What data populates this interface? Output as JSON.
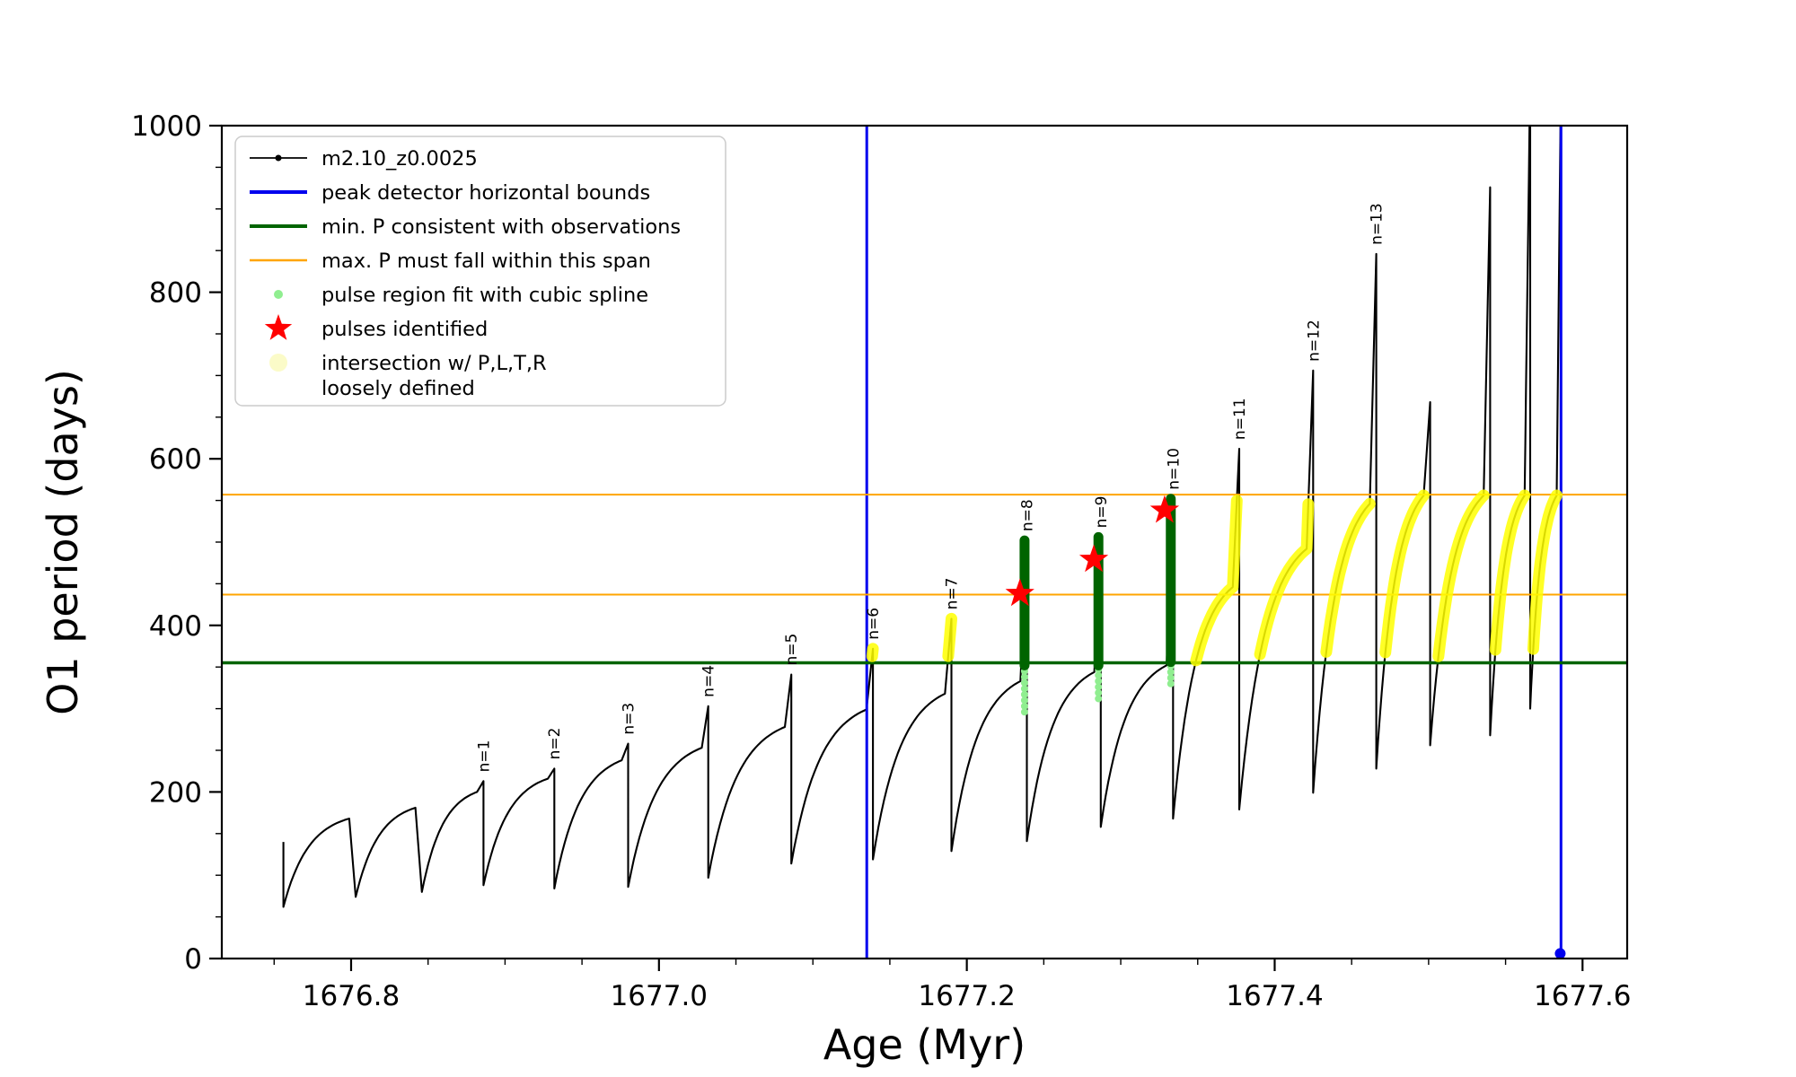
{
  "figure": {
    "background": "#ffffff"
  },
  "chart_data": {
    "type": "line",
    "title": "",
    "xlabel": "Age (Myr)",
    "ylabel": "O1 period (days)",
    "xlim": [
      1676.716,
      1677.629
    ],
    "ylim": [
      0,
      1000
    ],
    "xticks": {
      "values": [
        1676.8,
        1677.0,
        1677.2,
        1677.4,
        1677.6
      ],
      "labels": [
        "1676.8",
        "1677.0",
        "1677.2",
        "1677.4",
        "1677.6"
      ]
    },
    "yticks": {
      "values": [
        0,
        200,
        400,
        600,
        800,
        1000
      ],
      "labels": [
        "0",
        "200",
        "400",
        "600",
        "800",
        "1000"
      ]
    },
    "x_minor_step": 0.05,
    "y_minor_step": 50,
    "grid": false,
    "colors": {
      "series": "#000000",
      "peak_bounds": "#0000ee",
      "min_P": "#006400",
      "max_P_span": "#ffa500",
      "pulse_fit_dot": "#90ee90",
      "pulse_fit_bar": "#006400",
      "pulse_star": "#ff0000",
      "intersection": "#ffff00",
      "intersection_legend": "#fbfbc8"
    },
    "series_label": "m2.10_z0.0025",
    "reference_lines": {
      "peak_detector_bounds_x": [
        1677.135,
        1677.586
      ],
      "min_P_y": 355,
      "max_P_span_y": [
        437,
        557
      ]
    },
    "yellow_band_y": [
      355,
      558
    ],
    "lead_in": {
      "x": 1676.756,
      "y_top": 140
    },
    "end_drop_to": 0,
    "cycles": [
      {
        "x0": 1676.756,
        "x1": 1676.803,
        "ymin": 62,
        "top": 168,
        "peak": 168,
        "label": null,
        "yellow": false
      },
      {
        "x0": 1676.803,
        "x1": 1676.846,
        "ymin": 74,
        "top": 181,
        "peak": 181,
        "label": null,
        "yellow": false
      },
      {
        "x0": 1676.846,
        "x1": 1676.886,
        "ymin": 80,
        "top": 200,
        "peak": 213,
        "label": "n=1",
        "yellow": false
      },
      {
        "x0": 1676.886,
        "x1": 1676.932,
        "ymin": 88,
        "top": 216,
        "peak": 228,
        "label": "n=2",
        "yellow": false
      },
      {
        "x0": 1676.932,
        "x1": 1676.98,
        "ymin": 84,
        "top": 238,
        "peak": 258,
        "label": "n=3",
        "yellow": false
      },
      {
        "x0": 1676.98,
        "x1": 1677.032,
        "ymin": 86,
        "top": 253,
        "peak": 303,
        "label": "n=4",
        "yellow": false
      },
      {
        "x0": 1677.032,
        "x1": 1677.086,
        "ymin": 97,
        "top": 278,
        "peak": 341,
        "label": "n=5",
        "yellow": false
      },
      {
        "x0": 1677.086,
        "x1": 1677.139,
        "ymin": 114,
        "top": 299,
        "peak": 372,
        "label": "n=6",
        "yellow": true
      },
      {
        "x0": 1677.139,
        "x1": 1677.19,
        "ymin": 119,
        "top": 318,
        "peak": 408,
        "label": "n=7",
        "yellow": true
      },
      {
        "x0": 1677.19,
        "x1": 1677.239,
        "ymin": 129,
        "top": 333,
        "peak": 502,
        "label": "n=8",
        "yellow": false
      },
      {
        "x0": 1677.239,
        "x1": 1677.287,
        "ymin": 141,
        "top": 344,
        "peak": 506,
        "label": "n=9",
        "yellow": false
      },
      {
        "x0": 1677.287,
        "x1": 1677.334,
        "ymin": 158,
        "top": 352,
        "peak": 552,
        "label": "n=10",
        "yellow": false
      },
      {
        "x0": 1677.334,
        "x1": 1677.377,
        "ymin": 168,
        "top": 446,
        "peak": 612,
        "label": "n=11",
        "yellow": true
      },
      {
        "x0": 1677.377,
        "x1": 1677.425,
        "ymin": 179,
        "top": 492,
        "peak": 706,
        "label": "n=12",
        "yellow": true
      },
      {
        "x0": 1677.425,
        "x1": 1677.466,
        "ymin": 199,
        "top": 546,
        "peak": 846,
        "label": "n=13",
        "yellow": true
      },
      {
        "x0": 1677.466,
        "x1": 1677.501,
        "ymin": 228,
        "top": 556,
        "peak": 668,
        "label": null,
        "yellow": true
      },
      {
        "x0": 1677.501,
        "x1": 1677.54,
        "ymin": 256,
        "top": 556,
        "peak": 926,
        "label": null,
        "yellow": true
      },
      {
        "x0": 1677.54,
        "x1": 1677.566,
        "ymin": 268,
        "top": 556,
        "peak": 1060,
        "label": null,
        "yellow": true
      },
      {
        "x0": 1677.566,
        "x1": 1677.586,
        "ymin": 300,
        "top": 556,
        "peak": 1060,
        "label": null,
        "yellow": true
      }
    ],
    "pulse_fit_bars": [
      {
        "x": 1677.2375,
        "y0": 352,
        "y1": 502
      },
      {
        "x": 1677.2855,
        "y0": 352,
        "y1": 506
      },
      {
        "x": 1677.3325,
        "y0": 356,
        "y1": 552
      }
    ],
    "pulse_fit_dot_columns": [
      {
        "x": 1677.2375,
        "y0": 296,
        "y1": 352
      },
      {
        "x": 1677.2855,
        "y0": 312,
        "y1": 350
      },
      {
        "x": 1677.3325,
        "y0": 330,
        "y1": 354
      }
    ],
    "pulses": [
      {
        "x": 1677.2345,
        "y": 438
      },
      {
        "x": 1677.2825,
        "y": 479
      },
      {
        "x": 1677.3285,
        "y": 538
      }
    ],
    "blue_dot": {
      "x": 1677.5855,
      "y": 6
    },
    "legend": {
      "position": "upper-left",
      "entries": [
        {
          "symbol": "line-dot",
          "color": "#000000",
          "width": 1.8,
          "label": "m2.10_z0.0025"
        },
        {
          "symbol": "line",
          "color": "#0000ee",
          "width": 4,
          "label": "peak detector horizontal bounds"
        },
        {
          "symbol": "line",
          "color": "#006400",
          "width": 4,
          "label": "min. P consistent with observations"
        },
        {
          "symbol": "line",
          "color": "#ffa500",
          "width": 2.5,
          "label": "max. P must fall within this span"
        },
        {
          "symbol": "dot",
          "color": "#90ee90",
          "r": 5,
          "label": "pulse region fit with cubic spline"
        },
        {
          "symbol": "star",
          "color": "#ff0000",
          "label": "pulses identified"
        },
        {
          "symbol": "dot",
          "color": "#fbfbc8",
          "r": 10,
          "label": "intersection w/ P,L,T,R",
          "label2": "loosely defined"
        }
      ]
    }
  }
}
